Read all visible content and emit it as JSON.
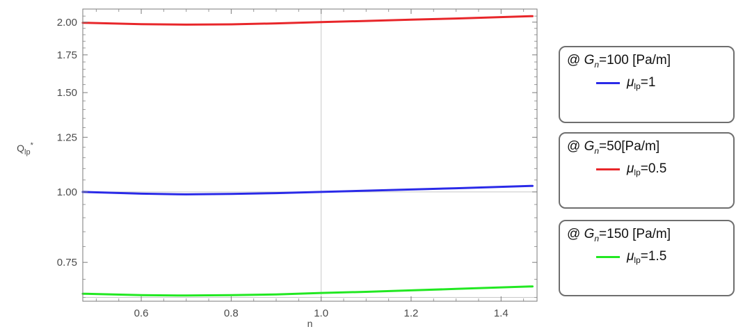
{
  "chart_data": {
    "type": "line",
    "xlabel": "n",
    "ylabel": "Q_lp*",
    "xlim": [
      0.47,
      1.48
    ],
    "ylim": [
      0.64,
      2.11
    ],
    "x_ticks": [
      0.6,
      0.8,
      1.0,
      1.2,
      1.4
    ],
    "x_tick_labels": [
      "0.6",
      "0.8",
      "1.0",
      "1.2",
      "1.4"
    ],
    "y_ticks": [
      0.75,
      1.0,
      1.25,
      1.5,
      1.75,
      2.0
    ],
    "y_tick_labels": [
      "0.75",
      "1.00",
      "1.25",
      "1.50",
      "1.75",
      "2.00"
    ],
    "y_scale": "log",
    "reference_lines": {
      "x": [
        1.0
      ],
      "y": [
        1.0,
        0.65
      ]
    },
    "grid": false,
    "series": [
      {
        "color": "#e8262a",
        "x": [
          0.47,
          0.6,
          0.7,
          0.8,
          0.9,
          1.0,
          1.1,
          1.2,
          1.3,
          1.47
        ],
        "values": [
          1.995,
          1.984,
          1.98,
          1.982,
          1.99,
          2.0,
          2.01,
          2.02,
          2.03,
          2.05
        ]
      },
      {
        "color": "#2a2ae8",
        "x": [
          0.47,
          0.6,
          0.7,
          0.8,
          0.9,
          1.0,
          1.1,
          1.2,
          1.3,
          1.47
        ],
        "values": [
          1.0,
          0.993,
          0.99,
          0.992,
          0.995,
          1.0,
          1.005,
          1.01,
          1.015,
          1.025
        ]
      },
      {
        "color": "#22e822",
        "x": [
          0.47,
          0.6,
          0.7,
          0.8,
          0.9,
          1.0,
          1.1,
          1.2,
          1.3,
          1.47
        ],
        "values": [
          0.66,
          0.656,
          0.655,
          0.656,
          0.658,
          0.662,
          0.665,
          0.669,
          0.673,
          0.68
        ]
      }
    ]
  },
  "legends": [
    {
      "prefix": "@ ",
      "g_symbol": "G",
      "g_sub": "n",
      "g_value": "=100 [Pa/m]",
      "mu_symbol": "μ",
      "mu_sub": "lp",
      "mu_value": "=1",
      "color": "#2a2ae8"
    },
    {
      "prefix": "@ ",
      "g_symbol": "G",
      "g_sub": "n",
      "g_value": "=50[Pa/m]",
      "mu_symbol": "μ",
      "mu_sub": "lp",
      "mu_value": "=0.5",
      "color": "#e8262a"
    },
    {
      "prefix": "@ ",
      "g_symbol": "G",
      "g_sub": "n",
      "g_value": "=150 [Pa/m]",
      "mu_symbol": "μ",
      "mu_sub": "lp",
      "mu_value": "=1.5",
      "color": "#22e822"
    }
  ]
}
